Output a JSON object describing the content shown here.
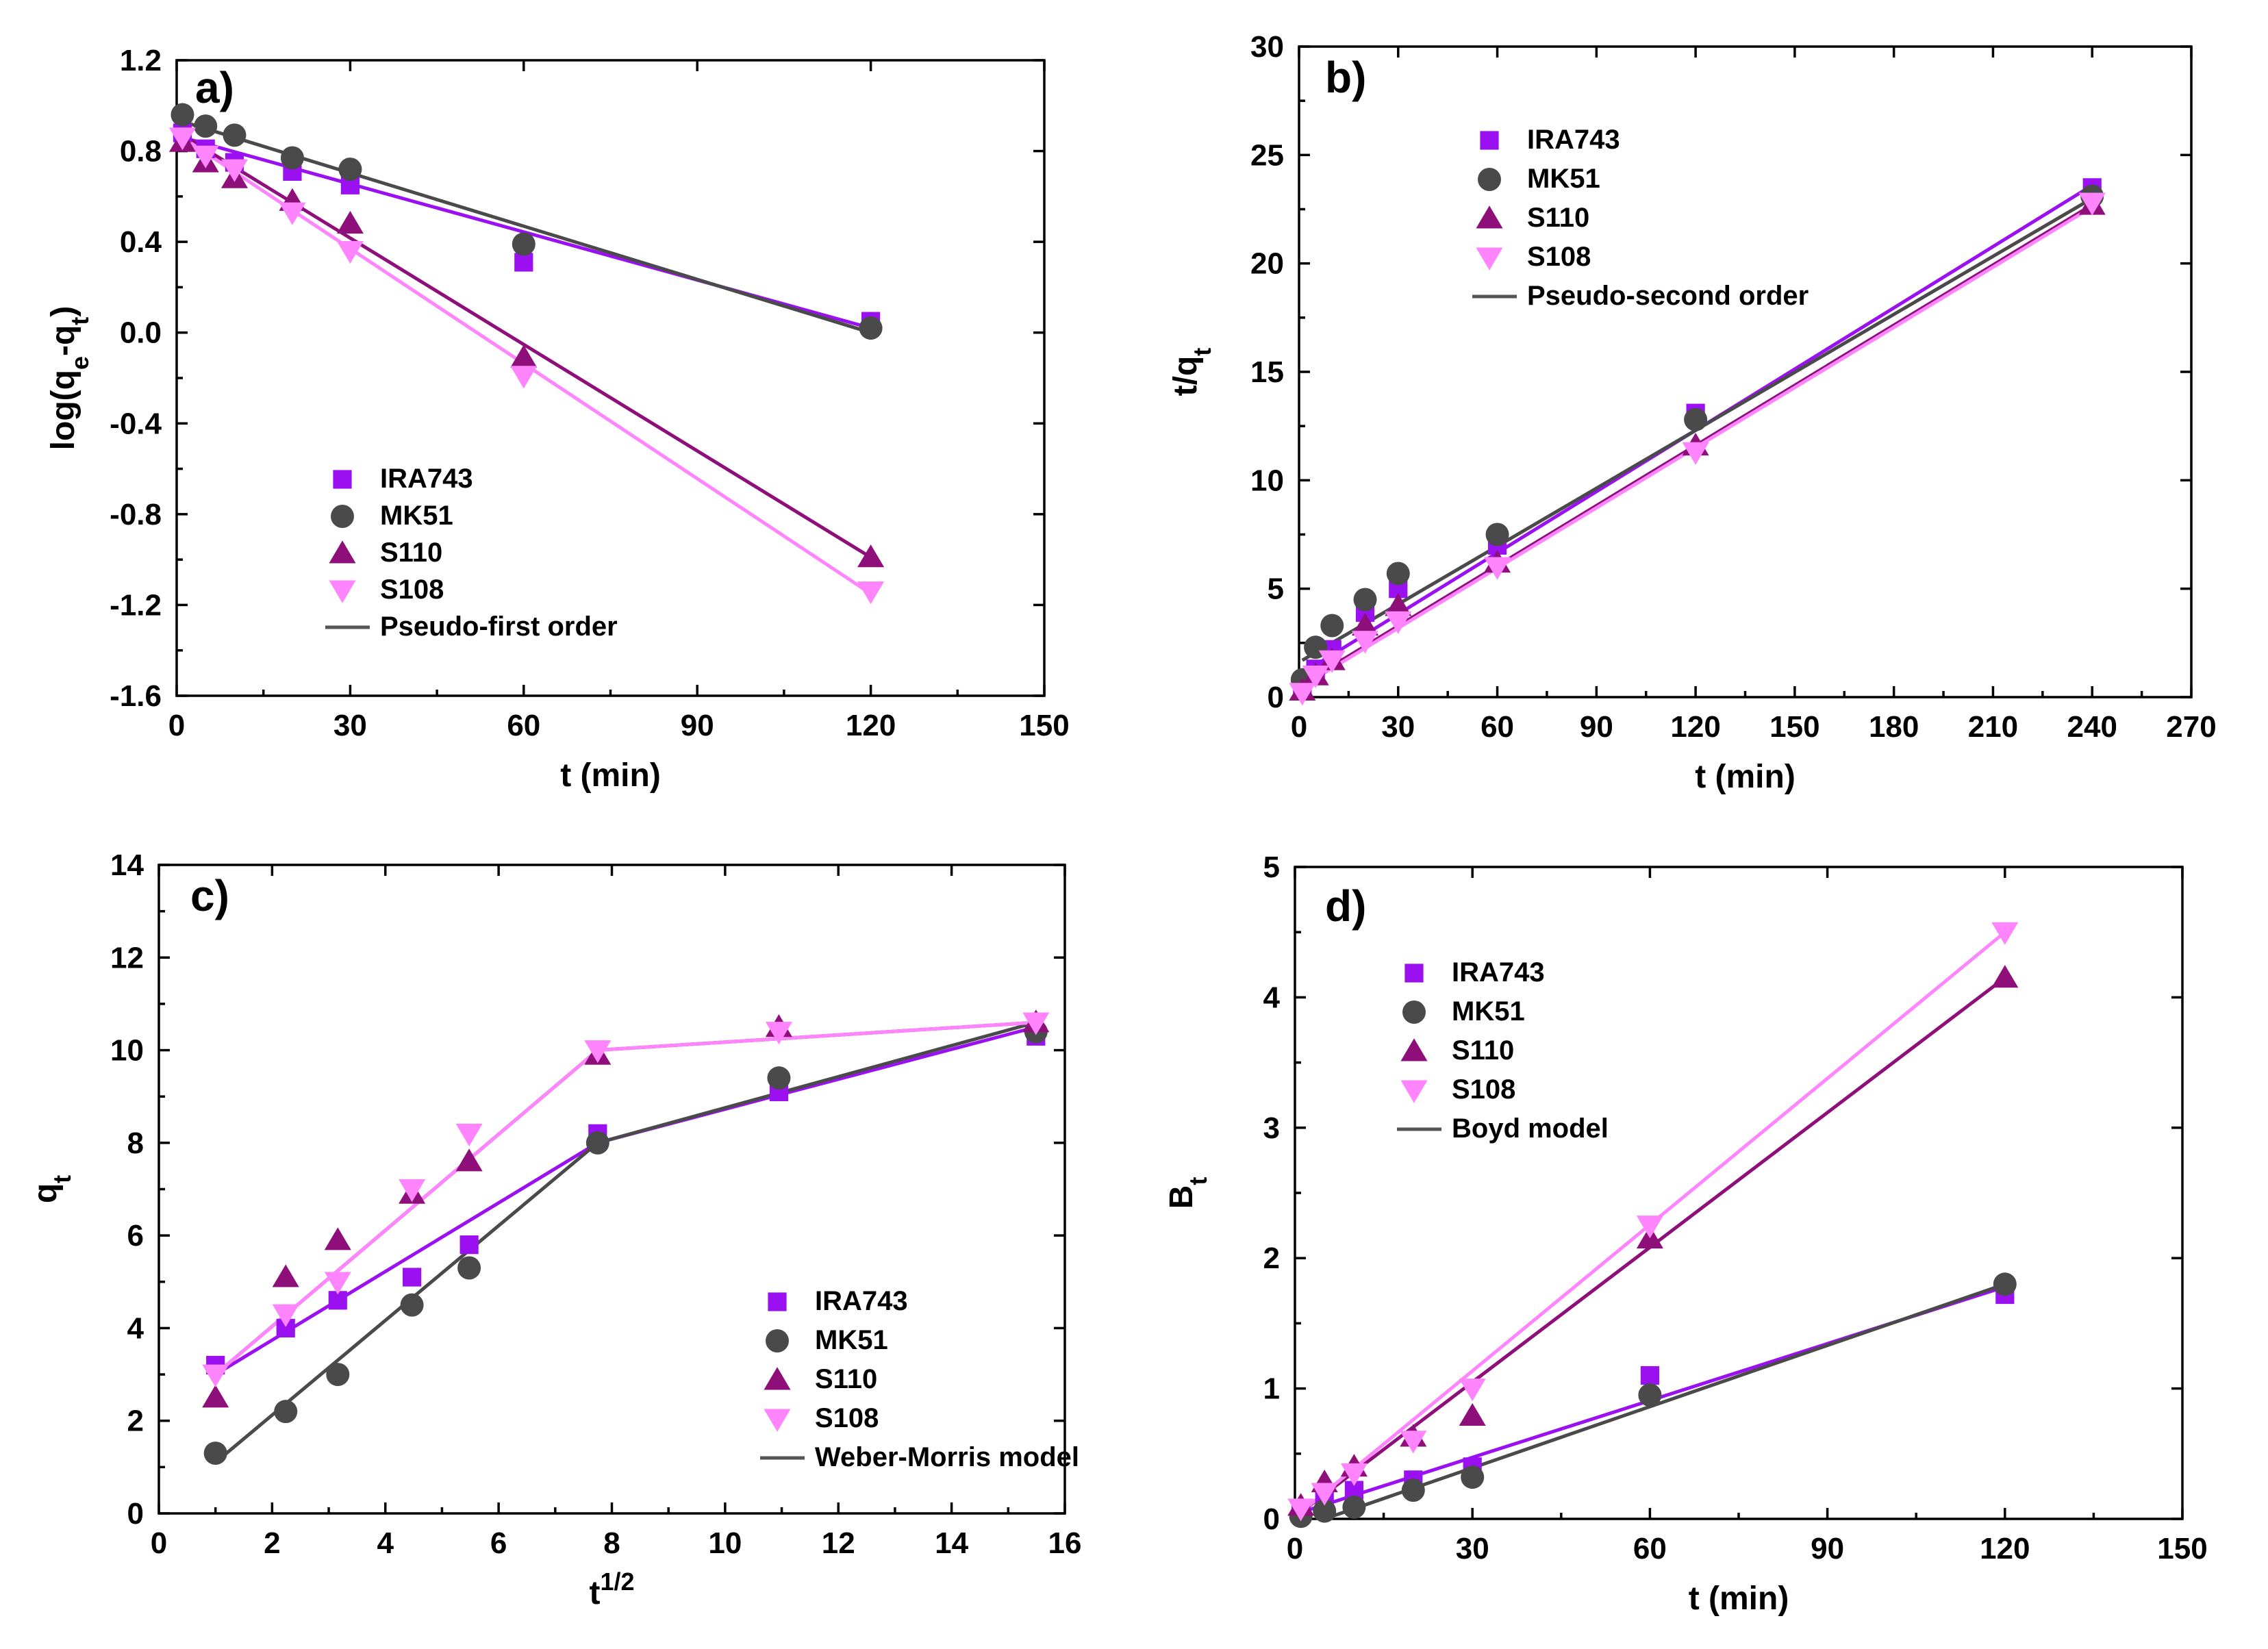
{
  "figure": {
    "colors": {
      "IRA743": "#9b10f0",
      "MK51": "#4a4a4a",
      "S110": "#8e0f7a",
      "S108": "#ff85ff",
      "model_line": "#555555"
    }
  },
  "chart_data": [
    {
      "panel": "a",
      "panel_label": "a)",
      "type": "scatter",
      "xlabel": "t (min)",
      "ylabel": "log(qₑ-qₜ)",
      "xlim": [
        0,
        150
      ],
      "ylim": [
        -1.6,
        1.2
      ],
      "xticks": [
        "0",
        "30",
        "60",
        "90",
        "120",
        "150"
      ],
      "yticks": [
        "-1.6",
        "-1.2",
        "-0.8",
        "-0.4",
        "0.0",
        "0.4",
        "0.8",
        "1.2"
      ],
      "xtick_values": [
        0,
        30,
        60,
        90,
        120,
        150
      ],
      "ytick_values": [
        -1.6,
        -1.2,
        -0.8,
        -0.4,
        0.0,
        0.4,
        0.8,
        1.2
      ],
      "legend_position": "bottom-left",
      "model_label": "Pseudo-first order",
      "series": [
        {
          "name": "IRA743",
          "marker": "square",
          "x": [
            1,
            5,
            10,
            20,
            30,
            60,
            120
          ],
          "y": [
            0.88,
            0.81,
            0.75,
            0.71,
            0.65,
            0.31,
            0.05
          ],
          "fit": [
            [
              1,
              0.86
            ],
            [
              120,
              0.02
            ]
          ]
        },
        {
          "name": "MK51",
          "marker": "circle",
          "x": [
            1,
            5,
            10,
            20,
            30,
            60,
            120
          ],
          "y": [
            0.96,
            0.91,
            0.87,
            0.77,
            0.72,
            0.39,
            0.02
          ],
          "fit": [
            [
              1,
              0.93
            ],
            [
              120,
              0.0
            ]
          ]
        },
        {
          "name": "S110",
          "marker": "triangle-up",
          "x": [
            1,
            5,
            10,
            20,
            30,
            60,
            120
          ],
          "y": [
            0.84,
            0.75,
            0.68,
            0.58,
            0.48,
            -0.11,
            -0.99
          ],
          "fit": [
            [
              1,
              0.87
            ],
            [
              120,
              -0.99
            ]
          ]
        },
        {
          "name": "S108",
          "marker": "triangle-down",
          "x": [
            1,
            5,
            10,
            20,
            30,
            60,
            120
          ],
          "y": [
            0.86,
            0.78,
            0.72,
            0.53,
            0.36,
            -0.19,
            -1.14
          ],
          "fit": [
            [
              1,
              0.86
            ],
            [
              120,
              -1.15
            ]
          ]
        }
      ]
    },
    {
      "panel": "b",
      "panel_label": "b)",
      "type": "scatter",
      "xlabel": "t (min)",
      "ylabel": "t/qₜ",
      "xlim": [
        0,
        270
      ],
      "ylim": [
        0,
        30
      ],
      "xticks": [
        "0",
        "30",
        "60",
        "90",
        "120",
        "150",
        "180",
        "210",
        "240",
        "270"
      ],
      "yticks": [
        "0",
        "5",
        "10",
        "15",
        "20",
        "25",
        "30"
      ],
      "xtick_values": [
        0,
        30,
        60,
        90,
        120,
        150,
        180,
        210,
        240,
        270
      ],
      "ytick_values": [
        0,
        5,
        10,
        15,
        20,
        25,
        30
      ],
      "legend_position": "top-left",
      "model_label": "Pseudo-second order",
      "series": [
        {
          "name": "IRA743",
          "marker": "square",
          "x": [
            1,
            5,
            10,
            20,
            30,
            60,
            120,
            240
          ],
          "y": [
            0.3,
            1.3,
            2.2,
            3.9,
            5.0,
            7.0,
            13.1,
            23.5
          ],
          "fit": [
            [
              1,
              1.1
            ],
            [
              240,
              23.6
            ]
          ]
        },
        {
          "name": "MK51",
          "marker": "circle",
          "x": [
            1,
            5,
            10,
            20,
            30,
            60,
            120,
            240
          ],
          "y": [
            0.8,
            2.3,
            3.3,
            4.5,
            5.7,
            7.5,
            12.8,
            23.1
          ],
          "fit": [
            [
              1,
              1.7
            ],
            [
              240,
              23.0
            ]
          ]
        },
        {
          "name": "S110",
          "marker": "triangle-up",
          "x": [
            1,
            5,
            10,
            20,
            30,
            60,
            120,
            240
          ],
          "y": [
            0.3,
            1.0,
            1.7,
            3.3,
            4.2,
            6.2,
            11.6,
            22.7
          ],
          "fit": [
            [
              1,
              0.6
            ],
            [
              240,
              22.7
            ]
          ]
        },
        {
          "name": "S108",
          "marker": "triangle-down",
          "x": [
            1,
            5,
            10,
            20,
            30,
            60,
            120,
            240
          ],
          "y": [
            0.2,
            1.0,
            1.7,
            2.6,
            3.5,
            6.0,
            11.3,
            22.8
          ],
          "fit": [
            [
              1,
              0.5
            ],
            [
              240,
              22.6
            ]
          ]
        }
      ]
    },
    {
      "panel": "c",
      "panel_label": "c)",
      "type": "scatter",
      "xlabel": "t^1/2",
      "ylabel": "qₜ",
      "xlim": [
        0,
        16
      ],
      "ylim": [
        0,
        14
      ],
      "xticks": [
        "0",
        "2",
        "4",
        "6",
        "8",
        "10",
        "12",
        "14",
        "16"
      ],
      "yticks": [
        "0",
        "2",
        "4",
        "6",
        "8",
        "10",
        "12",
        "14"
      ],
      "xtick_values": [
        0,
        2,
        4,
        6,
        8,
        10,
        12,
        14,
        16
      ],
      "ytick_values": [
        0,
        2,
        4,
        6,
        8,
        10,
        12,
        14
      ],
      "legend_position": "bottom-right",
      "model_label": "Weber-Morris model",
      "series": [
        {
          "name": "IRA743",
          "marker": "square",
          "x": [
            1.0,
            2.24,
            3.16,
            4.47,
            5.48,
            7.75,
            10.95,
            15.49
          ],
          "y": [
            3.2,
            4.0,
            4.6,
            5.1,
            5.8,
            8.2,
            9.1,
            10.3
          ],
          "fit": [
            [
              1.0,
              3.0
            ],
            [
              7.75,
              8.0
            ],
            [
              15.49,
              10.5
            ]
          ]
        },
        {
          "name": "MK51",
          "marker": "circle",
          "x": [
            1.0,
            2.24,
            3.16,
            4.47,
            5.48,
            7.75,
            10.95,
            15.49
          ],
          "y": [
            1.3,
            2.2,
            3.0,
            4.5,
            5.3,
            8.0,
            9.4,
            10.4
          ],
          "fit": [
            [
              1.0,
              1.1
            ],
            [
              7.75,
              8.0
            ],
            [
              15.49,
              10.6
            ]
          ]
        },
        {
          "name": "S110",
          "marker": "triangle-up",
          "x": [
            1.0,
            2.24,
            3.16,
            4.47,
            5.48,
            7.75,
            10.95,
            15.49
          ],
          "y": [
            2.5,
            5.1,
            5.9,
            6.9,
            7.6,
            9.9,
            10.5,
            10.6
          ],
          "fit": [
            [
              1.0,
              3.0
            ],
            [
              7.75,
              10.0
            ],
            [
              15.49,
              10.6
            ]
          ]
        },
        {
          "name": "S108",
          "marker": "triangle-down",
          "x": [
            1.0,
            2.24,
            3.16,
            4.47,
            5.48,
            7.75,
            10.95,
            15.49
          ],
          "y": [
            3.0,
            4.3,
            5.0,
            7.0,
            8.2,
            10.0,
            10.4,
            10.6
          ],
          "fit": [
            [
              1.0,
              3.0
            ],
            [
              7.75,
              10.0
            ],
            [
              15.49,
              10.6
            ]
          ]
        }
      ]
    },
    {
      "panel": "d",
      "panel_label": "d)",
      "type": "scatter",
      "xlabel": "t (min)",
      "ylabel": "Bₜ",
      "xlim": [
        0,
        150
      ],
      "ylim": [
        0,
        5
      ],
      "xticks": [
        "0",
        "30",
        "60",
        "90",
        "120",
        "150"
      ],
      "yticks": [
        "0",
        "1",
        "2",
        "3",
        "4",
        "5"
      ],
      "xtick_values": [
        0,
        30,
        60,
        90,
        120,
        150
      ],
      "ytick_values": [
        0,
        1,
        2,
        3,
        4,
        5
      ],
      "legend_position": "top-left",
      "model_label": "Boyd model",
      "series": [
        {
          "name": "IRA743",
          "marker": "square",
          "x": [
            1,
            5,
            10,
            20,
            30,
            60,
            120
          ],
          "y": [
            0.08,
            0.15,
            0.22,
            0.3,
            0.4,
            1.1,
            1.72
          ],
          "fit": [
            [
              1,
              0.05
            ],
            [
              120,
              1.78
            ]
          ]
        },
        {
          "name": "MK51",
          "marker": "circle",
          "x": [
            1,
            5,
            10,
            20,
            30,
            60,
            120
          ],
          "y": [
            0.02,
            0.06,
            0.09,
            0.22,
            0.32,
            0.95,
            1.8
          ],
          "fit": [
            [
              5,
              0.0
            ],
            [
              120,
              1.8
            ]
          ]
        },
        {
          "name": "S110",
          "marker": "triangle-up",
          "x": [
            1,
            5,
            10,
            20,
            30,
            60,
            120
          ],
          "y": [
            0.1,
            0.28,
            0.4,
            0.63,
            0.79,
            2.15,
            4.15
          ],
          "fit": [
            [
              1,
              0.05
            ],
            [
              120,
              4.15
            ]
          ]
        },
        {
          "name": "S108",
          "marker": "triangle-down",
          "x": [
            1,
            5,
            10,
            20,
            30,
            60,
            120
          ],
          "y": [
            0.08,
            0.2,
            0.35,
            0.6,
            1.0,
            2.25,
            4.5
          ],
          "fit": [
            [
              1,
              0.05
            ],
            [
              120,
              4.5
            ]
          ]
        }
      ]
    }
  ]
}
